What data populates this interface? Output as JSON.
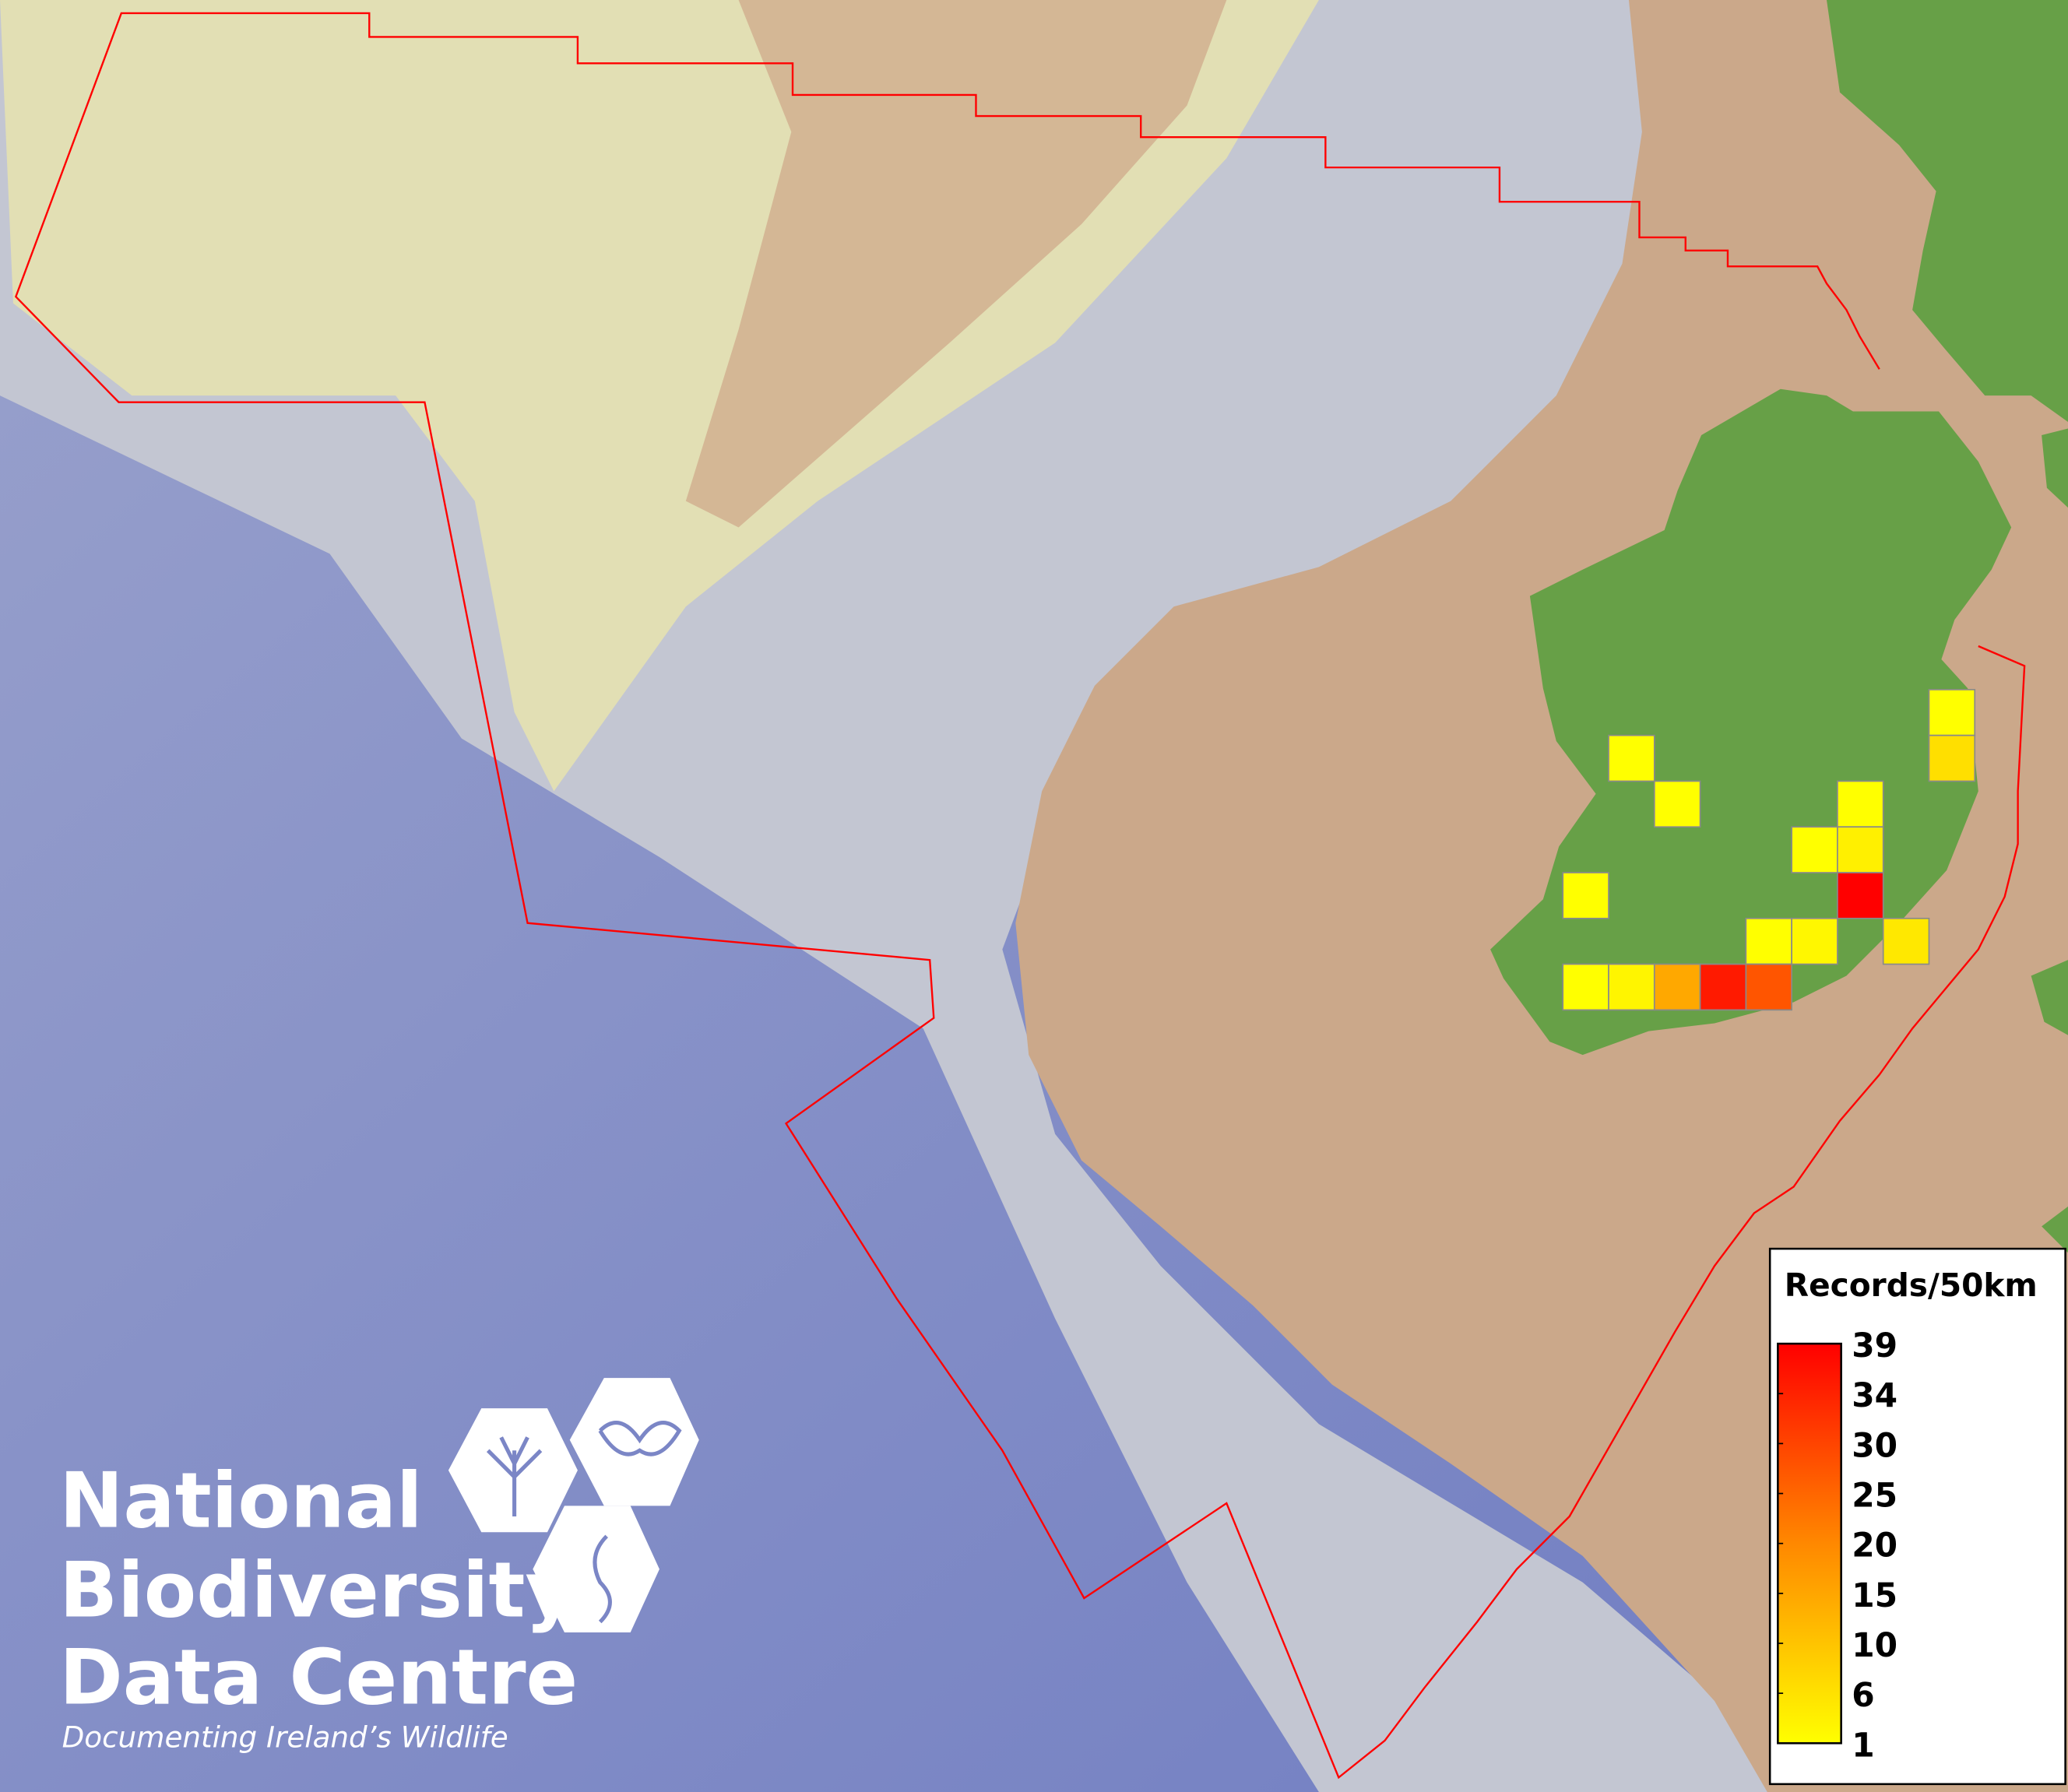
{
  "map": {
    "colors": {
      "deep_ocean": "#7b86c6",
      "slope": "#c3c6d2",
      "shelf_pale": "#e4e1b2",
      "shelf_brown": "#cba88a",
      "land": "#67a047",
      "boundary": "#ff0000",
      "cell_border": "#8a8a8a"
    },
    "grid_unit": "50km",
    "cells": [
      {
        "col": 8,
        "row": 0,
        "records": 1,
        "color": "#ffff00"
      },
      {
        "col": 8,
        "row": 1,
        "records": 6,
        "color": "#ffdf00"
      },
      {
        "col": 1,
        "row": 1,
        "records": 1,
        "color": "#ffff00"
      },
      {
        "col": 2,
        "row": 2,
        "records": 1,
        "color": "#ffff00"
      },
      {
        "col": 6,
        "row": 2,
        "records": 1,
        "color": "#ffff00"
      },
      {
        "col": 5,
        "row": 3,
        "records": 1,
        "color": "#ffff00"
      },
      {
        "col": 6,
        "row": 3,
        "records": 3,
        "color": "#fff000"
      },
      {
        "col": 6,
        "row": 4,
        "records": 39,
        "color": "#ff0000"
      },
      {
        "col": 0,
        "row": 4,
        "records": 1,
        "color": "#ffff00"
      },
      {
        "col": 4,
        "row": 5,
        "records": 1,
        "color": "#ffff00"
      },
      {
        "col": 5,
        "row": 5,
        "records": 2,
        "color": "#fff700"
      },
      {
        "col": 7,
        "row": 5,
        "records": 4,
        "color": "#ffe800"
      },
      {
        "col": 0,
        "row": 6,
        "records": 1,
        "color": "#ffff00"
      },
      {
        "col": 1,
        "row": 6,
        "records": 2,
        "color": "#fff500"
      },
      {
        "col": 2,
        "row": 6,
        "records": 13,
        "color": "#ffa800"
      },
      {
        "col": 3,
        "row": 6,
        "records": 35,
        "color": "#ff1a00"
      },
      {
        "col": 4,
        "row": 6,
        "records": 27,
        "color": "#ff5500"
      }
    ]
  },
  "legend": {
    "title": "Records/50km",
    "ticks": [
      "39",
      "34",
      "30",
      "25",
      "20",
      "15",
      "10",
      "6",
      "1"
    ],
    "color_min": "#ffff00",
    "color_mid": "#ff8800",
    "color_max": "#ff0000"
  },
  "logo": {
    "line1": "National",
    "line2": "Biodiversity",
    "line3": "Data Centre",
    "tagline": "Documenting Ireland’s Wildlife",
    "icons": [
      "tree-icon",
      "butterfly-icon",
      "seahorse-icon"
    ]
  }
}
